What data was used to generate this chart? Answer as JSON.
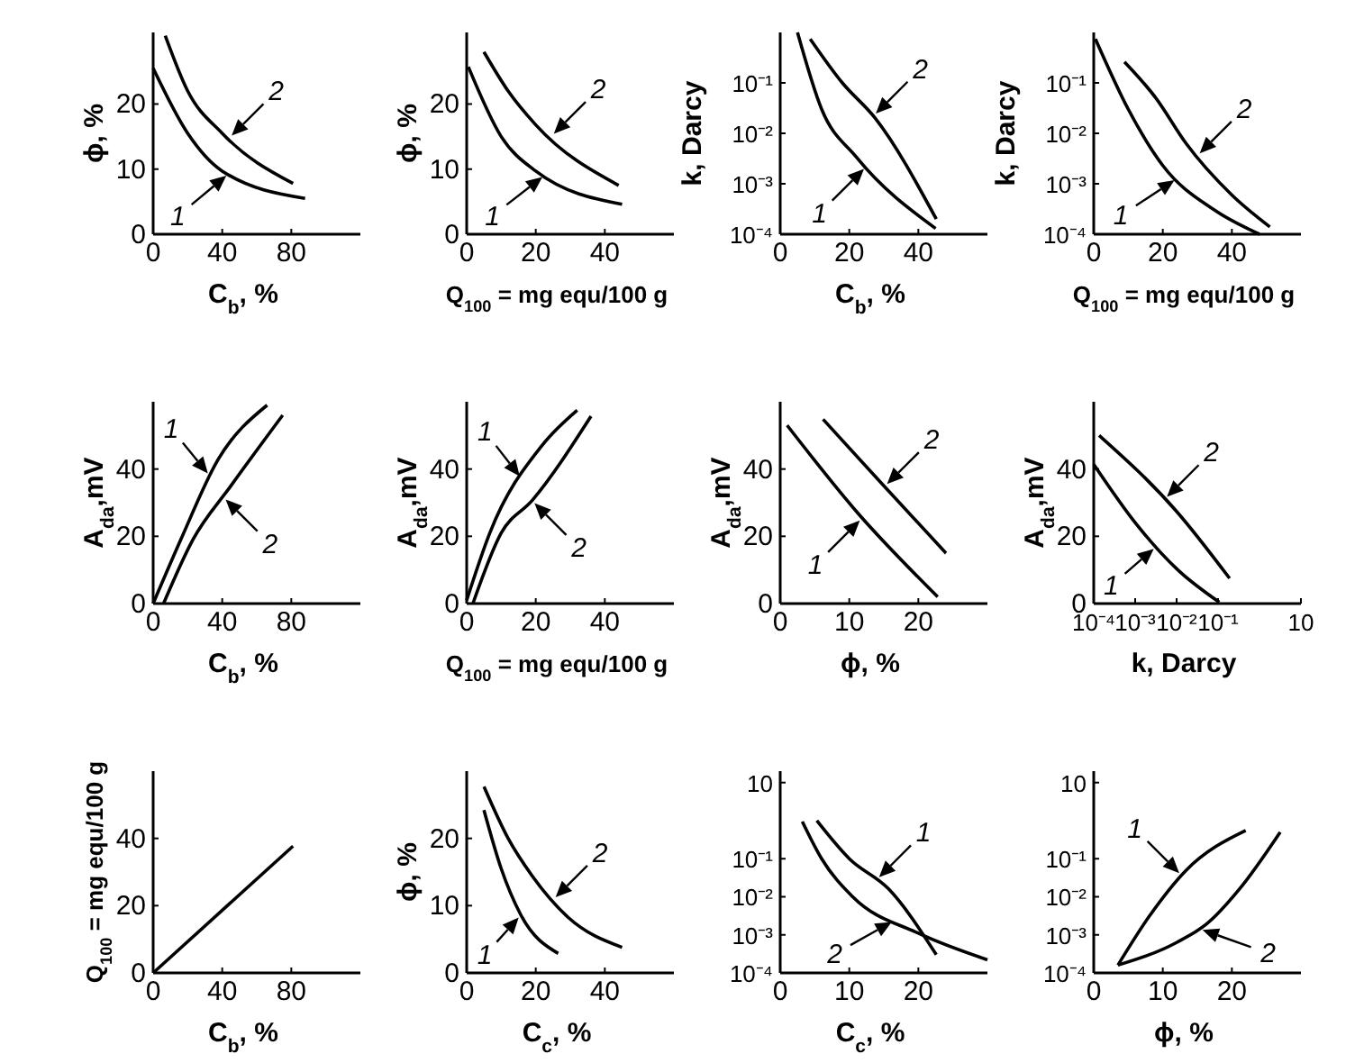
{
  "chart_data": [
    {
      "type": "line",
      "xlabel": "C$_{b}$, %",
      "ylabel": "ϕ, %",
      "xlim": [
        0,
        120
      ],
      "ylim": [
        0,
        31
      ],
      "xticks": [
        0,
        40,
        80
      ],
      "yticks": [
        0,
        10,
        20
      ],
      "series": [
        {
          "name": "1",
          "color": "#000000",
          "x": [
            0,
            20,
            40,
            88
          ],
          "values": [
            25.5,
            15.5,
            9.7,
            5.5
          ]
        },
        {
          "name": "2",
          "color": "#000000",
          "x": [
            7,
            20,
            40,
            81
          ],
          "values": [
            30.5,
            22,
            15.5,
            7.8
          ]
        }
      ]
    },
    {
      "type": "line",
      "xlabel": "Q$_{100}$ = mg equ/100 g",
      "ylabel": "ϕ, %",
      "xlim": [
        0,
        60
      ],
      "ylim": [
        0,
        31
      ],
      "xticks": [
        0,
        20,
        40
      ],
      "yticks": [
        0,
        10,
        20
      ],
      "series": [
        {
          "name": "1",
          "color": "#000000",
          "x": [
            0.5,
            10,
            20,
            45
          ],
          "values": [
            25.7,
            15,
            9.7,
            4.6
          ]
        },
        {
          "name": "2",
          "color": "#000000",
          "x": [
            5,
            12,
            20,
            44
          ],
          "values": [
            28,
            22,
            16.8,
            7.5
          ]
        }
      ]
    },
    {
      "type": "line",
      "log": "y",
      "xlabel": "C$_{b}$, %",
      "ylabel": "k, Darcy",
      "xlim": [
        0,
        60
      ],
      "ylim": [
        0.0001,
        1
      ],
      "xticks": [
        0,
        20,
        40
      ],
      "yticks": [
        {
          "value": 0.0001,
          "label": "10⁻⁴"
        },
        {
          "value": 0.001,
          "label": "10⁻³"
        },
        {
          "value": 0.01,
          "label": "10⁻²"
        },
        {
          "value": 0.1,
          "label": "10⁻¹"
        }
      ],
      "series": [
        {
          "name": "1",
          "color": "#000000",
          "x": [
            5,
            12,
            22,
            45
          ],
          "values": [
            1,
            0.03,
            0.0034,
            0.00013
          ]
        },
        {
          "name": "2",
          "color": "#000000",
          "x": [
            8.7,
            18,
            27.5,
            45.2
          ],
          "values": [
            0.74,
            0.1,
            0.02,
            0.0002
          ]
        }
      ]
    },
    {
      "type": "line",
      "log": "y",
      "xlabel": "Q$_{100}$ = mg equ/100 g",
      "ylabel": "k, Darcy",
      "xlim": [
        0,
        60
      ],
      "ylim": [
        0.0001,
        1
      ],
      "xticks": [
        0,
        20,
        40
      ],
      "yticks": [
        {
          "value": 0.0001,
          "label": "10⁻⁴"
        },
        {
          "value": 0.001,
          "label": "10⁻³"
        },
        {
          "value": 0.01,
          "label": "10⁻²"
        },
        {
          "value": 0.1,
          "label": "10⁻¹"
        }
      ],
      "series": [
        {
          "name": "1",
          "color": "#000000",
          "x": [
            0.5,
            10,
            20,
            35,
            48
          ],
          "values": [
            0.74,
            0.03,
            0.0023,
            0.0003,
            0.0001
          ]
        },
        {
          "name": "2",
          "color": "#000000",
          "x": [
            8.9,
            18,
            26.6,
            40,
            51
          ],
          "values": [
            0.26,
            0.05,
            0.0065,
            0.0006,
            0.00014
          ]
        }
      ]
    },
    {
      "type": "line",
      "xlabel": "C$_{b}$, %",
      "ylabel": "A$_{da}$,mV",
      "xlim": [
        0,
        120
      ],
      "ylim": [
        0,
        60
      ],
      "xticks": [
        0,
        40,
        80
      ],
      "yticks": [
        0,
        20,
        40
      ],
      "series": [
        {
          "name": "1",
          "color": "#000000",
          "x": [
            0,
            16,
            37,
            66
          ],
          "values": [
            0,
            19,
            42.3,
            59
          ]
        },
        {
          "name": "2",
          "color": "#000000",
          "x": [
            6,
            23,
            45,
            75
          ],
          "values": [
            0,
            19,
            35,
            56
          ]
        }
      ]
    },
    {
      "type": "line",
      "xlabel": "Q$_{100}$ = mg equ/100 g",
      "ylabel": "A$_{da}$,mV",
      "xlim": [
        0,
        60
      ],
      "ylim": [
        0,
        60
      ],
      "xticks": [
        0,
        20,
        40
      ],
      "yticks": [
        0,
        20,
        40
      ],
      "series": [
        {
          "name": "1",
          "color": "#000000",
          "x": [
            0,
            6.7,
            21.8,
            32
          ],
          "values": [
            1,
            21,
            47,
            57.5
          ]
        },
        {
          "name": "2",
          "color": "#000000",
          "x": [
            1.8,
            10,
            19,
            36
          ],
          "values": [
            0,
            21,
            30.7,
            55.7
          ]
        }
      ]
    },
    {
      "type": "line",
      "xlabel": "ϕ, %",
      "ylabel": "A$_{da}$,mV",
      "xlim": [
        0,
        30
      ],
      "ylim": [
        0,
        60
      ],
      "xticks": [
        0,
        10,
        20
      ],
      "yticks": [
        0,
        20,
        40
      ],
      "series": [
        {
          "name": "1",
          "color": "#000000",
          "x": [
            1,
            11.2,
            22.8
          ],
          "values": [
            53,
            27,
            2
          ]
        },
        {
          "name": "2",
          "color": "#000000",
          "x": [
            6.2,
            15,
            24
          ],
          "values": [
            54.8,
            35,
            15
          ]
        }
      ]
    },
    {
      "type": "line",
      "log": "x",
      "xlabel": "k, Darcy",
      "ylabel": "A$_{da}$,mV",
      "xlim": [
        0.0001,
        10
      ],
      "ylim": [
        0,
        60
      ],
      "xticks": [
        {
          "value": 0.0001,
          "label": "10⁻⁴"
        },
        {
          "value": 0.001,
          "label": "10⁻³"
        },
        {
          "value": 0.01,
          "label": "10⁻²"
        },
        {
          "value": 0.1,
          "label": "10⁻¹"
        },
        10
      ],
      "yticks": [
        0,
        20,
        40
      ],
      "series": [
        {
          "name": "1",
          "color": "#000000",
          "x": [
            0.0001,
            0.00107,
            0.0107,
            0.107
          ],
          "values": [
            41.4,
            23.6,
            10,
            0.4
          ]
        },
        {
          "name": "2",
          "color": "#000000",
          "x": [
            0.000135,
            0.01,
            0.19
          ],
          "values": [
            50,
            27.4,
            7.5
          ]
        }
      ]
    },
    {
      "type": "line",
      "xlabel": "C$_{b}$, %",
      "ylabel": "Q$_{100}$ = mg equ/100 g",
      "xlim": [
        0,
        120
      ],
      "ylim": [
        0,
        60
      ],
      "xticks": [
        0,
        40,
        80
      ],
      "yticks": [
        0,
        20,
        40
      ],
      "series": [
        {
          "color": "#000000",
          "x": [
            0,
            81
          ],
          "values": [
            0,
            37.7
          ]
        }
      ]
    },
    {
      "type": "line",
      "xlabel": "C$_{c}$, %",
      "ylabel": "ϕ, %",
      "xlim": [
        0,
        60
      ],
      "ylim": [
        0,
        30
      ],
      "xticks": [
        0,
        20,
        40
      ],
      "yticks": [
        0,
        10,
        20
      ],
      "series": [
        {
          "name": "1",
          "color": "#000000",
          "x": [
            5,
            10,
            15.6,
            26.5
          ],
          "values": [
            24.2,
            15.5,
            8.7,
            2.9
          ]
        },
        {
          "name": "2",
          "color": "#000000",
          "x": [
            5,
            12,
            19,
            29.5,
            45
          ],
          "values": [
            27.7,
            20,
            14.4,
            8.2,
            3.8
          ]
        }
      ]
    },
    {
      "type": "line",
      "log": "y",
      "xlabel": "C$_{c}$, %",
      "xlim": [
        0,
        30
      ],
      "ylim": [
        0.0001,
        20
      ],
      "xticks": [
        0,
        10,
        20
      ],
      "yticks": [
        {
          "value": 0.0001,
          "label": "10⁻⁴"
        },
        {
          "value": 0.001,
          "label": "10⁻³"
        },
        {
          "value": 0.01,
          "label": "10⁻²"
        },
        {
          "value": 0.1,
          "label": "10⁻¹"
        },
        10
      ],
      "series": [
        {
          "name": "1",
          "color": "#000000",
          "x": [
            5.3,
            10,
            15.7,
            22.6
          ],
          "values": [
            1,
            0.1,
            0.016,
            0.0003
          ]
        },
        {
          "name": "2",
          "color": "#000000",
          "x": [
            3.2,
            6,
            10.5,
            20,
            30
          ],
          "values": [
            0.95,
            0.1,
            0.01,
            0.0011,
            0.00022
          ]
        }
      ]
    },
    {
      "type": "line",
      "log": "y",
      "xlabel": "ϕ, %",
      "xlim": [
        0,
        30
      ],
      "ylim": [
        0.0001,
        20
      ],
      "xticks": [
        0,
        10,
        20
      ],
      "yticks": [
        {
          "value": 0.0001,
          "label": "10⁻⁴"
        },
        {
          "value": 0.001,
          "label": "10⁻³"
        },
        {
          "value": 0.01,
          "label": "10⁻²"
        },
        {
          "value": 0.1,
          "label": "10⁻¹"
        },
        10
      ],
      "series": [
        {
          "name": "1",
          "color": "#000000",
          "x": [
            3.5,
            8,
            13.3,
            22
          ],
          "values": [
            0.00016,
            0.003,
            0.048,
            0.55
          ]
        },
        {
          "name": "2",
          "color": "#000000",
          "x": [
            3.5,
            12,
            16.3,
            21.1,
            27
          ],
          "values": [
            0.00016,
            0.00063,
            0.0019,
            0.016,
            0.5
          ]
        }
      ]
    }
  ]
}
